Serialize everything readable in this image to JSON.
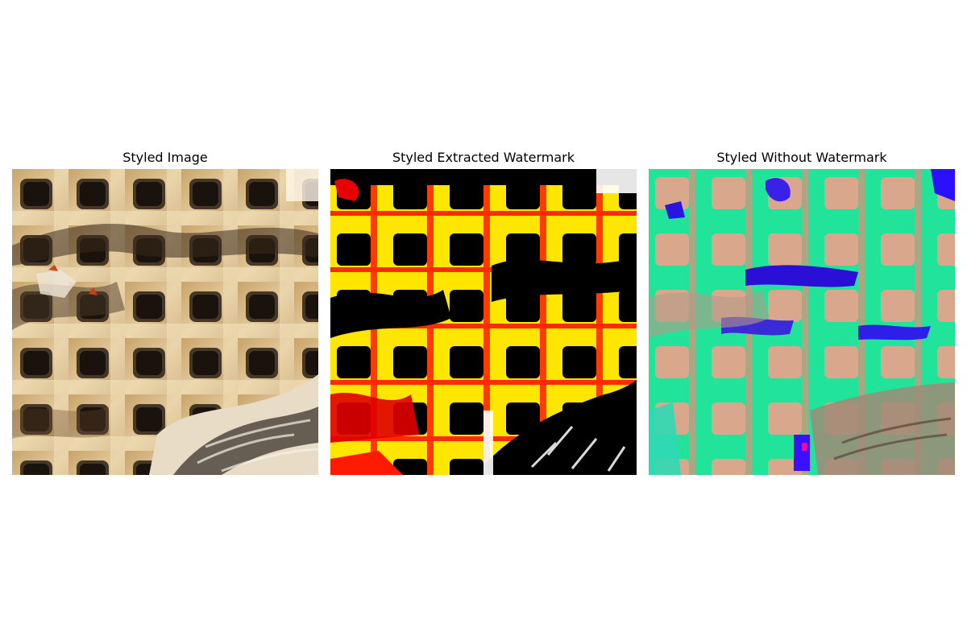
{
  "panels": [
    {
      "title": "Styled Image"
    },
    {
      "title": "Styled Extracted Watermark"
    },
    {
      "title": "Styled Without Watermark"
    }
  ]
}
